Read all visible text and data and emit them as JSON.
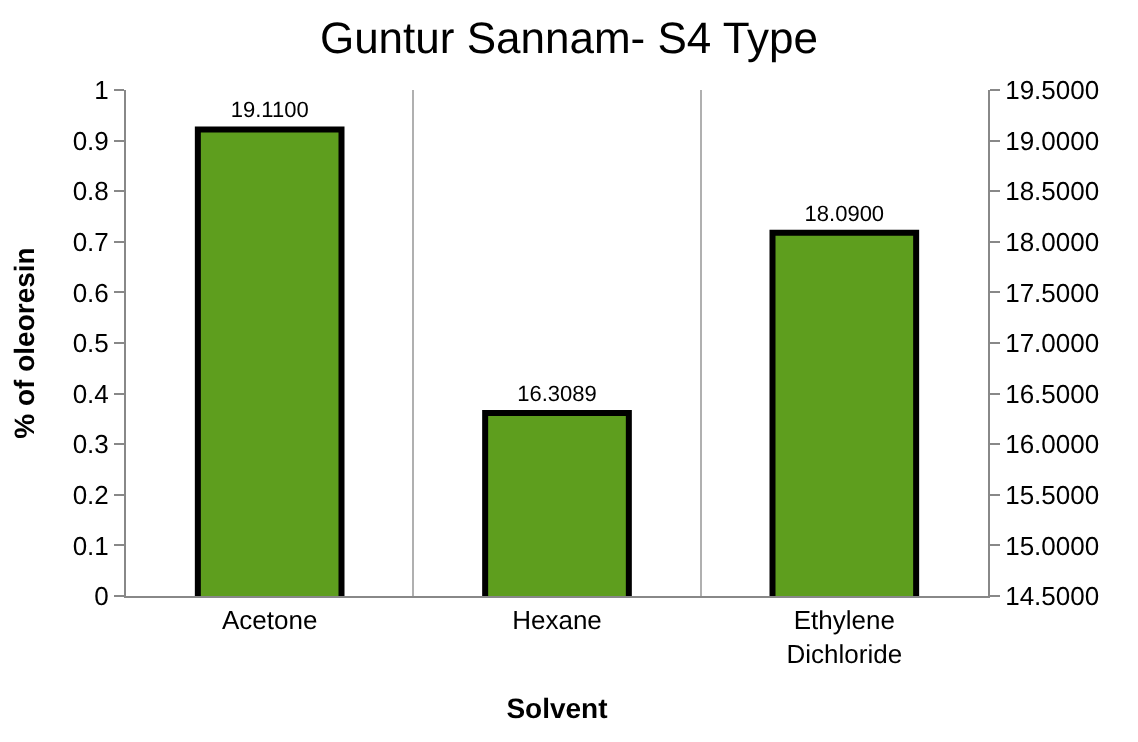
{
  "chart_data": {
    "type": "bar",
    "title": "Guntur Sannam- S4 Type",
    "xlabel": "Solvent",
    "ylabel": "% of oleoresin",
    "categories": [
      "Acetone",
      "Hexane",
      "Ethylene Dichloride"
    ],
    "series": [
      {
        "color": "#5e9e1e",
        "axis": "y2",
        "values": [
          19.11,
          16.3089,
          18.09
        ],
        "value_labels": [
          "19.1100",
          "16.3089",
          "18.0900"
        ]
      }
    ],
    "ylim": [
      0,
      1
    ],
    "yticks": [
      0,
      0.1,
      0.2,
      0.3,
      0.4,
      0.5,
      0.6,
      0.7,
      0.8,
      0.9,
      1
    ],
    "y2lim": [
      14.5,
      19.5
    ],
    "y2ticks": [
      {
        "value": 14.5,
        "label": "14.5000"
      },
      {
        "value": 15,
        "label": "15.0000"
      },
      {
        "value": 15.5,
        "label": "15.5000"
      },
      {
        "value": 16,
        "label": "16.0000"
      },
      {
        "value": 16.5,
        "label": "16.5000"
      },
      {
        "value": 17,
        "label": "17.0000"
      },
      {
        "value": 17.5,
        "label": "17.5000"
      },
      {
        "value": 18,
        "label": "18.0000"
      },
      {
        "value": 18.5,
        "label": "18.5000"
      },
      {
        "value": 19,
        "label": "19.0000"
      },
      {
        "value": 19.5,
        "label": "19.5000"
      }
    ],
    "grid": "x"
  }
}
